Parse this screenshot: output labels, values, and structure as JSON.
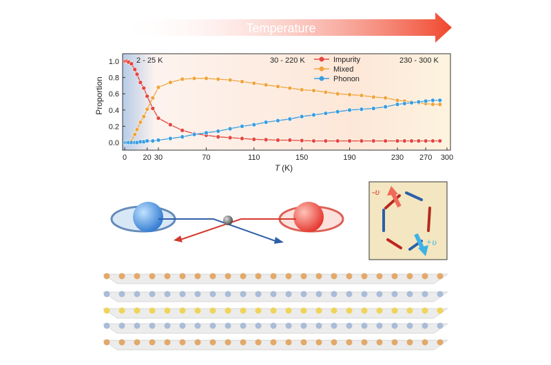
{
  "header": {
    "arrow_label": "Temperature"
  },
  "chart_data": {
    "type": "line",
    "title": "",
    "xlabel_italic": "T",
    "xlabel_unit": "(K)",
    "ylabel": "Proportion",
    "xlim": [
      0,
      300
    ],
    "ylim": [
      -0.07,
      1.08
    ],
    "x_ticks": [
      0,
      20,
      30,
      70,
      110,
      150,
      190,
      230,
      270,
      300
    ],
    "y_ticks": [
      "0.0",
      "0.2",
      "0.4",
      "0.6",
      "0.8",
      "1.0"
    ],
    "regions": [
      {
        "label": "2 - 25 K",
        "range": [
          0,
          30
        ],
        "color": "#b9cde6"
      },
      {
        "label": "30 - 220 K",
        "range": [
          30,
          230
        ],
        "color": "#fbe2d2"
      },
      {
        "label": "230 - 300 K",
        "range": [
          230,
          300
        ],
        "color": "#fdf1dc"
      }
    ],
    "legend_position": "top-right",
    "x": [
      0.5,
      2,
      3.5,
      6,
      9,
      11,
      14,
      17,
      20,
      25,
      30,
      40,
      50,
      60,
      70,
      80,
      90,
      100,
      110,
      120,
      130,
      140,
      150,
      160,
      170,
      180,
      190,
      200,
      210,
      220,
      230,
      240,
      250,
      260,
      270,
      280,
      290
    ],
    "series": [
      {
        "name": "Impurity",
        "color": "#e5473f",
        "values": [
          1.0,
          1.0,
          0.99,
          0.97,
          0.9,
          0.84,
          0.74,
          0.67,
          0.57,
          0.42,
          0.3,
          0.22,
          0.15,
          0.11,
          0.09,
          0.07,
          0.06,
          0.05,
          0.04,
          0.035,
          0.03,
          0.03,
          0.025,
          0.02,
          0.02,
          0.02,
          0.02,
          0.02,
          0.02,
          0.02,
          0.02,
          0.02,
          0.02,
          0.02,
          0.02,
          0.02,
          0.02
        ]
      },
      {
        "name": "Mixed",
        "color": "#f0a53c",
        "values": [
          0,
          0,
          0,
          0.02,
          0.1,
          0.16,
          0.25,
          0.32,
          0.41,
          0.55,
          0.68,
          0.74,
          0.78,
          0.79,
          0.79,
          0.78,
          0.77,
          0.75,
          0.73,
          0.71,
          0.69,
          0.67,
          0.65,
          0.64,
          0.62,
          0.6,
          0.59,
          0.58,
          0.56,
          0.55,
          0.52,
          0.51,
          0.5,
          0.49,
          0.48,
          0.47,
          0.47
        ]
      },
      {
        "name": "Phonon",
        "color": "#3a9ee0",
        "values": [
          0,
          0,
          0,
          0,
          0,
          0,
          0.01,
          0.01,
          0.02,
          0.02,
          0.03,
          0.05,
          0.07,
          0.1,
          0.12,
          0.14,
          0.17,
          0.2,
          0.22,
          0.25,
          0.27,
          0.29,
          0.32,
          0.34,
          0.36,
          0.38,
          0.4,
          0.41,
          0.42,
          0.44,
          0.47,
          0.48,
          0.49,
          0.5,
          0.51,
          0.52,
          0.52
        ]
      }
    ]
  },
  "inset": {
    "minus_label": "-υ",
    "plus_label": "+υ"
  }
}
